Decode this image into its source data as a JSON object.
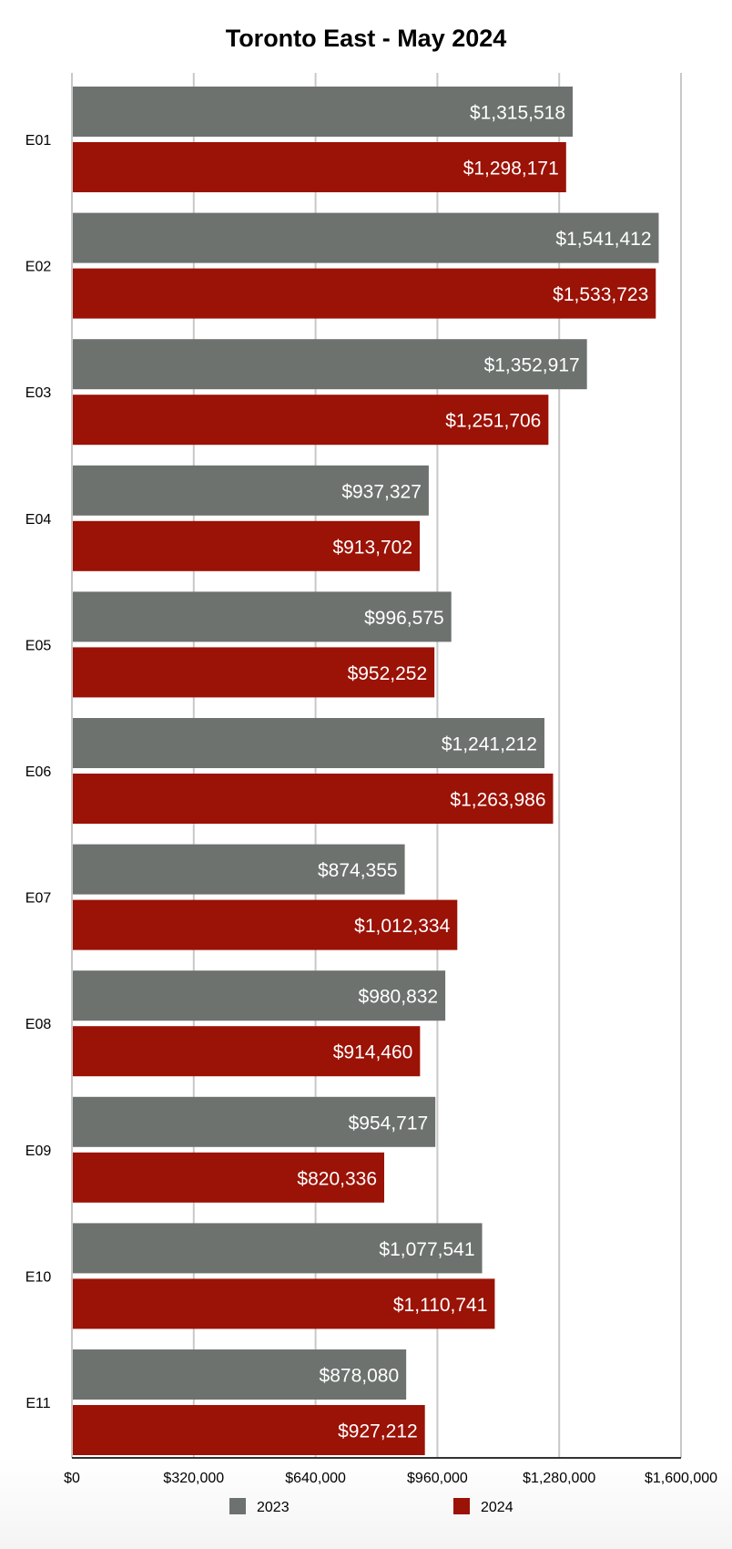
{
  "chart_data": {
    "type": "bar",
    "orientation": "horizontal",
    "title": "Toronto East - May 2024",
    "categories": [
      "E01",
      "E02",
      "E03",
      "E04",
      "E05",
      "E06",
      "E07",
      "E08",
      "E09",
      "E10",
      "E11"
    ],
    "series": [
      {
        "name": "2023",
        "color": "#6d726f",
        "values": [
          1315518,
          1541412,
          1352917,
          937327,
          996575,
          1241212,
          874355,
          980832,
          954717,
          1077541,
          878080
        ],
        "labels": [
          "$1,315,518",
          "$1,541,412",
          "$1,352,917",
          "$937,327",
          "$996,575",
          "$1,241,212",
          "$874,355",
          "$980,832",
          "$954,717",
          "$1,077,541",
          "$878,080"
        ]
      },
      {
        "name": "2024",
        "color": "#9b1206",
        "values": [
          1298171,
          1533723,
          1251706,
          913702,
          952252,
          1263986,
          1012334,
          914460,
          820336,
          1110741,
          927212
        ],
        "labels": [
          "$1,298,171",
          "$1,533,723",
          "$1,251,706",
          "$913,702",
          "$952,252",
          "$1,263,986",
          "$1,012,334",
          "$914,460",
          "$820,336",
          "$1,110,741",
          "$927,212"
        ]
      }
    ],
    "xlim": [
      0,
      1600000
    ],
    "xticks": [
      0,
      320000,
      640000,
      960000,
      1280000,
      1600000
    ],
    "xtick_labels": [
      "$0",
      "$320,000",
      "$640,000",
      "$960,000",
      "$1,280,000",
      "$1,600,000"
    ],
    "grid": true,
    "legend_position": "bottom"
  }
}
